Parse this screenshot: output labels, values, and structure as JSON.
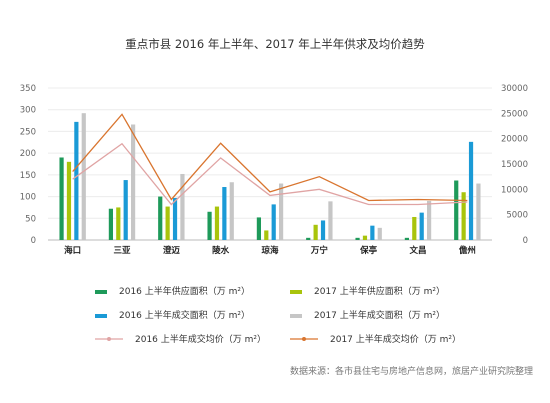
{
  "chart_data": {
    "type": "bar",
    "title": "重点市县 2016 年上半年、2017 年上半年供求及均价趋势",
    "categories": [
      "海口",
      "三亚",
      "澄迈",
      "陵水",
      "琼海",
      "万宁",
      "保亭",
      "文昌",
      "儋州"
    ],
    "series": [
      {
        "name": "2016 上半年供应面积（万 m²）",
        "axis": "left",
        "kind": "bar",
        "color": "#1e9a5a",
        "values": [
          190,
          72,
          100,
          65,
          52,
          5,
          5,
          5,
          137
        ]
      },
      {
        "name": "2017 上半年供应面积（万 m²）",
        "axis": "left",
        "kind": "bar",
        "color": "#a9c40c",
        "values": [
          180,
          75,
          77,
          77,
          22,
          35,
          10,
          53,
          110
        ]
      },
      {
        "name": "2016 上半年成交面积（万 m²）",
        "axis": "left",
        "kind": "bar",
        "color": "#1a9ad6",
        "values": [
          272,
          138,
          97,
          122,
          82,
          45,
          33,
          63,
          226
        ]
      },
      {
        "name": "2017 上半年成交面积（万 m²）",
        "axis": "left",
        "kind": "bar",
        "color": "#c6c6c6",
        "values": [
          292,
          266,
          152,
          133,
          130,
          89,
          28,
          90,
          130
        ]
      },
      {
        "name": "2016 上半年成交均价（万 m²）",
        "axis": "right",
        "kind": "line",
        "color": "#e0a4a4",
        "values": [
          12000,
          19000,
          7000,
          16200,
          8800,
          10000,
          7000,
          7000,
          7500
        ]
      },
      {
        "name": "2017 上半年成交均价（万 m²）",
        "axis": "right",
        "kind": "line",
        "color": "#d9752f",
        "values": [
          13500,
          24800,
          8000,
          19100,
          9500,
          12500,
          7800,
          8000,
          7800
        ]
      }
    ],
    "left_ylim": [
      0,
      350
    ],
    "left_ticks": [
      "0",
      "50",
      "100",
      "150",
      "200",
      "250",
      "300",
      "350"
    ],
    "right_ylim": [
      0,
      30000
    ],
    "right_ticks": [
      "0",
      "5000",
      "10000",
      "15000",
      "20000",
      "25000",
      "30000"
    ],
    "grid": true,
    "legend_position": "bottom"
  },
  "source_text": "数据来源：各市县住宅与房地产信息网，旅居产业研究院整理"
}
